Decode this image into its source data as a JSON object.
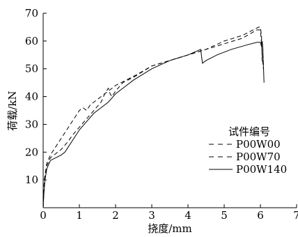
{
  "chart_data": {
    "type": "line",
    "xlabel": "挠度/mm",
    "ylabel": "荷载/kN",
    "xlim": [
      0,
      7
    ],
    "ylim": [
      0,
      70
    ],
    "xticks": [
      "0",
      "1",
      "2",
      "3",
      "4",
      "5",
      "6",
      "7"
    ],
    "yticks": [
      "10",
      "20",
      "30",
      "40",
      "50",
      "60",
      "70"
    ],
    "grid": false,
    "legend": {
      "title": "试件编号",
      "position": "lower-right"
    },
    "series": [
      {
        "name": "P00W00",
        "style": "dashed",
        "points": [
          [
            0,
            0
          ],
          [
            0.03,
            10
          ],
          [
            0.1,
            16
          ],
          [
            0.2,
            19
          ],
          [
            0.35,
            22
          ],
          [
            0.5,
            25
          ],
          [
            0.6,
            27
          ],
          [
            0.7,
            29
          ],
          [
            0.8,
            31
          ],
          [
            0.9,
            33
          ],
          [
            1.0,
            35
          ],
          [
            1.1,
            36
          ],
          [
            1.2,
            35
          ],
          [
            1.3,
            37
          ],
          [
            1.4,
            38
          ],
          [
            1.6,
            40
          ],
          [
            1.8,
            42
          ],
          [
            2.0,
            44
          ],
          [
            2.3,
            46
          ],
          [
            2.6,
            48
          ],
          [
            3.0,
            51
          ],
          [
            3.5,
            53
          ],
          [
            4.0,
            55
          ],
          [
            4.5,
            57
          ],
          [
            5.0,
            59
          ],
          [
            5.5,
            61
          ],
          [
            5.9,
            64
          ],
          [
            6.0,
            64
          ],
          [
            6.02,
            61
          ],
          [
            6.05,
            55
          ],
          [
            6.08,
            50
          ]
        ]
      },
      {
        "name": "P00W70",
        "style": "dashed",
        "points": [
          [
            0,
            0
          ],
          [
            0.03,
            9
          ],
          [
            0.1,
            15
          ],
          [
            0.2,
            18
          ],
          [
            0.3,
            19
          ],
          [
            0.5,
            21
          ],
          [
            0.7,
            24
          ],
          [
            0.8,
            26
          ],
          [
            1.0,
            29
          ],
          [
            1.2,
            32
          ],
          [
            1.4,
            35
          ],
          [
            1.6,
            38
          ],
          [
            1.7,
            41
          ],
          [
            1.8,
            43
          ],
          [
            1.85,
            41
          ],
          [
            1.9,
            40
          ],
          [
            2.0,
            42
          ],
          [
            2.2,
            45
          ],
          [
            2.5,
            47
          ],
          [
            3.0,
            51
          ],
          [
            3.5,
            53
          ],
          [
            4.0,
            55
          ],
          [
            4.5,
            57
          ],
          [
            5.0,
            60
          ],
          [
            5.5,
            62
          ],
          [
            5.8,
            64
          ],
          [
            5.95,
            65
          ],
          [
            6.0,
            65
          ],
          [
            6.03,
            62
          ],
          [
            6.05,
            52
          ]
        ]
      },
      {
        "name": "P00W140",
        "style": "solid",
        "points": [
          [
            0,
            0
          ],
          [
            0.02,
            5
          ],
          [
            0.05,
            10
          ],
          [
            0.1,
            14
          ],
          [
            0.2,
            17
          ],
          [
            0.35,
            18
          ],
          [
            0.5,
            19
          ],
          [
            0.6,
            20
          ],
          [
            0.7,
            22
          ],
          [
            0.9,
            26
          ],
          [
            1.0,
            28
          ],
          [
            1.2,
            31
          ],
          [
            1.4,
            34
          ],
          [
            1.6,
            36
          ],
          [
            1.8,
            38
          ],
          [
            2.0,
            41
          ],
          [
            2.2,
            43
          ],
          [
            2.5,
            46
          ],
          [
            3.0,
            50
          ],
          [
            3.5,
            53
          ],
          [
            4.0,
            55
          ],
          [
            4.35,
            57
          ],
          [
            4.4,
            52
          ],
          [
            4.5,
            53
          ],
          [
            4.8,
            55
          ],
          [
            5.2,
            57
          ],
          [
            5.6,
            58.5
          ],
          [
            5.9,
            59.5
          ],
          [
            6.0,
            59.5
          ],
          [
            6.03,
            58
          ],
          [
            6.05,
            60
          ],
          [
            6.07,
            57
          ],
          [
            6.1,
            45
          ]
        ]
      }
    ]
  }
}
